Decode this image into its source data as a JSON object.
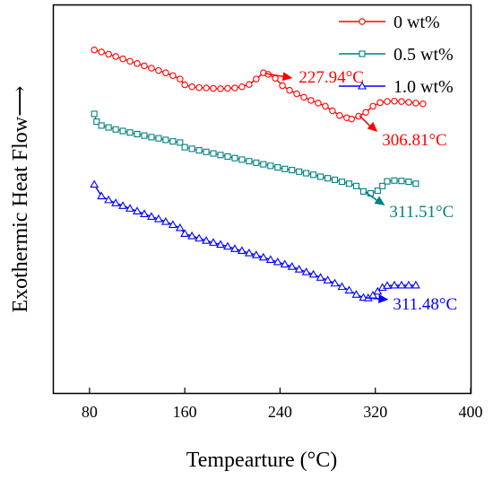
{
  "chart_data": {
    "type": "line",
    "title": "",
    "xlabel": "Tempearture (°C)",
    "ylabel": "Exothermic Heat Flow⟶",
    "xlim": [
      50,
      400
    ],
    "xticks": [
      80,
      160,
      240,
      320,
      400
    ],
    "y_ticks_shown": false,
    "grid": false,
    "legend_position": "top-right",
    "series": [
      {
        "name": "0   wt%",
        "color": "#ff0000",
        "marker": "circle",
        "points": [
          [
            84,
            0.885
          ],
          [
            90,
            0.88
          ],
          [
            96,
            0.874
          ],
          [
            102,
            0.868
          ],
          [
            108,
            0.862
          ],
          [
            114,
            0.856
          ],
          [
            120,
            0.85
          ],
          [
            126,
            0.844
          ],
          [
            132,
            0.838
          ],
          [
            138,
            0.832
          ],
          [
            144,
            0.826
          ],
          [
            150,
            0.819
          ],
          [
            156,
            0.81
          ],
          [
            160,
            0.795
          ],
          [
            166,
            0.79
          ],
          [
            172,
            0.788
          ],
          [
            178,
            0.787
          ],
          [
            184,
            0.786
          ],
          [
            190,
            0.785
          ],
          [
            196,
            0.786
          ],
          [
            202,
            0.787
          ],
          [
            208,
            0.79
          ],
          [
            214,
            0.796
          ],
          [
            220,
            0.81
          ],
          [
            226,
            0.826
          ],
          [
            230,
            0.822
          ],
          [
            236,
            0.812
          ],
          [
            242,
            0.793
          ],
          [
            248,
            0.781
          ],
          [
            254,
            0.772
          ],
          [
            260,
            0.763
          ],
          [
            266,
            0.755
          ],
          [
            272,
            0.748
          ],
          [
            278,
            0.74
          ],
          [
            284,
            0.728
          ],
          [
            290,
            0.716
          ],
          [
            296,
            0.71
          ],
          [
            300,
            0.707
          ],
          [
            306,
            0.714
          ],
          [
            312,
            0.724
          ],
          [
            318,
            0.74
          ],
          [
            324,
            0.749
          ],
          [
            330,
            0.752
          ],
          [
            336,
            0.753
          ],
          [
            342,
            0.752
          ],
          [
            348,
            0.75
          ],
          [
            354,
            0.748
          ],
          [
            360,
            0.746
          ]
        ],
        "annotations": [
          {
            "label": "227.94°C",
            "x": 227.94
          },
          {
            "label": "306.81°C",
            "x": 306.81
          }
        ]
      },
      {
        "name": "0.5 wt%",
        "color": "#008080",
        "marker": "square",
        "points": [
          [
            84,
            0.72
          ],
          [
            86,
            0.7
          ],
          [
            90,
            0.69
          ],
          [
            96,
            0.685
          ],
          [
            102,
            0.68
          ],
          [
            108,
            0.676
          ],
          [
            114,
            0.672
          ],
          [
            120,
            0.668
          ],
          [
            126,
            0.664
          ],
          [
            132,
            0.66
          ],
          [
            138,
            0.657
          ],
          [
            144,
            0.653
          ],
          [
            150,
            0.649
          ],
          [
            156,
            0.646
          ],
          [
            160,
            0.634
          ],
          [
            166,
            0.63
          ],
          [
            172,
            0.626
          ],
          [
            178,
            0.622
          ],
          [
            184,
            0.618
          ],
          [
            190,
            0.614
          ],
          [
            196,
            0.61
          ],
          [
            202,
            0.606
          ],
          [
            208,
            0.602
          ],
          [
            214,
            0.598
          ],
          [
            220,
            0.594
          ],
          [
            226,
            0.59
          ],
          [
            232,
            0.586
          ],
          [
            238,
            0.582
          ],
          [
            244,
            0.578
          ],
          [
            250,
            0.575
          ],
          [
            256,
            0.571
          ],
          [
            262,
            0.567
          ],
          [
            268,
            0.563
          ],
          [
            274,
            0.558
          ],
          [
            280,
            0.554
          ],
          [
            286,
            0.55
          ],
          [
            292,
            0.545
          ],
          [
            298,
            0.54
          ],
          [
            304,
            0.534
          ],
          [
            310,
            0.52
          ],
          [
            316,
            0.515
          ],
          [
            322,
            0.522
          ],
          [
            326,
            0.534
          ],
          [
            330,
            0.546
          ],
          [
            336,
            0.548
          ],
          [
            342,
            0.547
          ],
          [
            348,
            0.545
          ],
          [
            354,
            0.54
          ]
        ],
        "annotations": [
          {
            "label": "311.51°C",
            "x": 311.51
          }
        ]
      },
      {
        "name": "1.0 wt%",
        "color": "#0000ff",
        "marker": "triangle",
        "points": [
          [
            84,
            0.538
          ],
          [
            90,
            0.508
          ],
          [
            96,
            0.498
          ],
          [
            102,
            0.49
          ],
          [
            108,
            0.483
          ],
          [
            114,
            0.476
          ],
          [
            120,
            0.469
          ],
          [
            126,
            0.462
          ],
          [
            132,
            0.455
          ],
          [
            138,
            0.449
          ],
          [
            144,
            0.442
          ],
          [
            150,
            0.434
          ],
          [
            156,
            0.426
          ],
          [
            160,
            0.411
          ],
          [
            166,
            0.405
          ],
          [
            172,
            0.399
          ],
          [
            178,
            0.393
          ],
          [
            184,
            0.388
          ],
          [
            190,
            0.383
          ],
          [
            196,
            0.378
          ],
          [
            202,
            0.372
          ],
          [
            208,
            0.367
          ],
          [
            214,
            0.361
          ],
          [
            220,
            0.356
          ],
          [
            226,
            0.35
          ],
          [
            232,
            0.344
          ],
          [
            238,
            0.338
          ],
          [
            244,
            0.332
          ],
          [
            250,
            0.326
          ],
          [
            256,
            0.319
          ],
          [
            262,
            0.312
          ],
          [
            268,
            0.306
          ],
          [
            274,
            0.298
          ],
          [
            280,
            0.291
          ],
          [
            286,
            0.283
          ],
          [
            292,
            0.274
          ],
          [
            298,
            0.265
          ],
          [
            304,
            0.254
          ],
          [
            310,
            0.246
          ],
          [
            314,
            0.245
          ],
          [
            318,
            0.252
          ],
          [
            322,
            0.262
          ],
          [
            326,
            0.272
          ],
          [
            330,
            0.277
          ],
          [
            336,
            0.278
          ],
          [
            342,
            0.278
          ],
          [
            348,
            0.278
          ],
          [
            354,
            0.278
          ]
        ],
        "annotations": [
          {
            "label": "311.48°C",
            "x": 311.48
          }
        ]
      }
    ]
  }
}
